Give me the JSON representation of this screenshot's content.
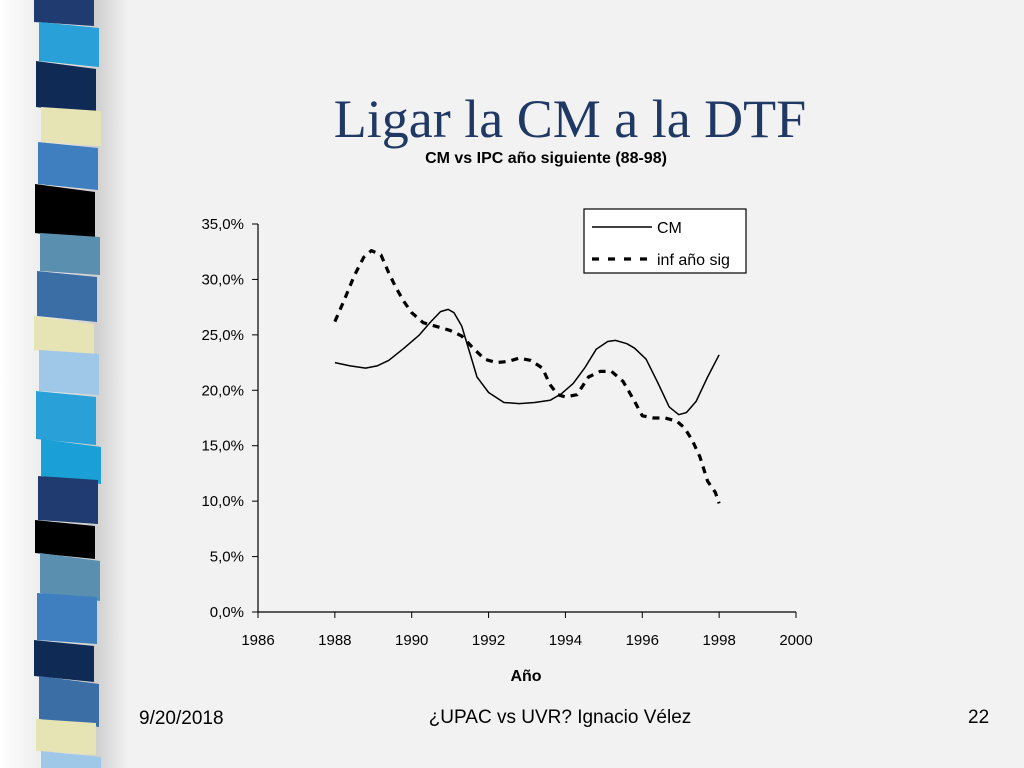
{
  "slide": {
    "title": "Ligar la CM a la DTF",
    "footer_date": "9/20/2018",
    "footer_center": "¿UPAC vs UVR? Ignacio Vélez",
    "page_number": "22"
  },
  "banner_colors": [
    "#1f3b6f",
    "#3f7fbf",
    "#2aa0d8",
    "#e6e3b4",
    "#5a8fb0",
    "#0f2a55",
    "#000000",
    "#9fc8e8",
    "#3a6ea5",
    "#1a9fd6"
  ],
  "chart_data": {
    "type": "line",
    "title": "CM vs IPC año siguiente (88-98)",
    "xlabel": "Año",
    "ylabel": "",
    "xlim": [
      1986,
      2000
    ],
    "ylim": [
      0,
      0.35
    ],
    "x_ticks": [
      "1986",
      "1988",
      "1990",
      "1992",
      "1994",
      "1996",
      "1998",
      "2000"
    ],
    "y_ticks": [
      "0,0%",
      "5,0%",
      "10,0%",
      "15,0%",
      "20,0%",
      "25,0%",
      "30,0%",
      "35,0%"
    ],
    "legend_position": "top-right",
    "series": [
      {
        "name": "CM",
        "style": "solid",
        "color": "#000000",
        "points": [
          [
            1988.0,
            0.225
          ],
          [
            1988.4,
            0.222
          ],
          [
            1988.8,
            0.22
          ],
          [
            1989.1,
            0.222
          ],
          [
            1989.4,
            0.227
          ],
          [
            1989.8,
            0.238
          ],
          [
            1990.2,
            0.25
          ],
          [
            1990.5,
            0.262
          ],
          [
            1990.75,
            0.271
          ],
          [
            1990.95,
            0.273
          ],
          [
            1991.1,
            0.27
          ],
          [
            1991.3,
            0.258
          ],
          [
            1991.5,
            0.235
          ],
          [
            1991.7,
            0.212
          ],
          [
            1992.0,
            0.198
          ],
          [
            1992.4,
            0.189
          ],
          [
            1992.8,
            0.188
          ],
          [
            1993.2,
            0.189
          ],
          [
            1993.6,
            0.191
          ],
          [
            1993.9,
            0.197
          ],
          [
            1994.2,
            0.206
          ],
          [
            1994.5,
            0.22
          ],
          [
            1994.8,
            0.237
          ],
          [
            1995.1,
            0.244
          ],
          [
            1995.3,
            0.245
          ],
          [
            1995.6,
            0.242
          ],
          [
            1995.8,
            0.238
          ],
          [
            1996.1,
            0.228
          ],
          [
            1996.4,
            0.207
          ],
          [
            1996.7,
            0.185
          ],
          [
            1996.95,
            0.178
          ],
          [
            1997.15,
            0.18
          ],
          [
            1997.4,
            0.19
          ],
          [
            1997.7,
            0.212
          ],
          [
            1998.0,
            0.232
          ]
        ]
      },
      {
        "name": "inf año sig",
        "style": "dashed",
        "color": "#000000",
        "points": [
          [
            1988.0,
            0.262
          ],
          [
            1988.25,
            0.282
          ],
          [
            1988.5,
            0.303
          ],
          [
            1988.75,
            0.32
          ],
          [
            1988.95,
            0.326
          ],
          [
            1989.2,
            0.322
          ],
          [
            1989.4,
            0.306
          ],
          [
            1989.6,
            0.292
          ],
          [
            1989.8,
            0.28
          ],
          [
            1990.0,
            0.27
          ],
          [
            1990.3,
            0.261
          ],
          [
            1990.7,
            0.257
          ],
          [
            1991.0,
            0.254
          ],
          [
            1991.3,
            0.249
          ],
          [
            1991.6,
            0.238
          ],
          [
            1991.9,
            0.228
          ],
          [
            1992.2,
            0.225
          ],
          [
            1992.5,
            0.226
          ],
          [
            1992.8,
            0.229
          ],
          [
            1993.1,
            0.227
          ],
          [
            1993.4,
            0.22
          ],
          [
            1993.6,
            0.205
          ],
          [
            1993.8,
            0.196
          ],
          [
            1994.0,
            0.194
          ],
          [
            1994.3,
            0.196
          ],
          [
            1994.6,
            0.212
          ],
          [
            1994.9,
            0.217
          ],
          [
            1995.2,
            0.217
          ],
          [
            1995.5,
            0.208
          ],
          [
            1995.8,
            0.19
          ],
          [
            1996.0,
            0.177
          ],
          [
            1996.3,
            0.175
          ],
          [
            1996.6,
            0.175
          ],
          [
            1996.9,
            0.172
          ],
          [
            1997.1,
            0.166
          ],
          [
            1997.3,
            0.155
          ],
          [
            1997.5,
            0.14
          ],
          [
            1997.7,
            0.118
          ],
          [
            1997.9,
            0.108
          ],
          [
            1998.0,
            0.098
          ]
        ]
      }
    ]
  }
}
